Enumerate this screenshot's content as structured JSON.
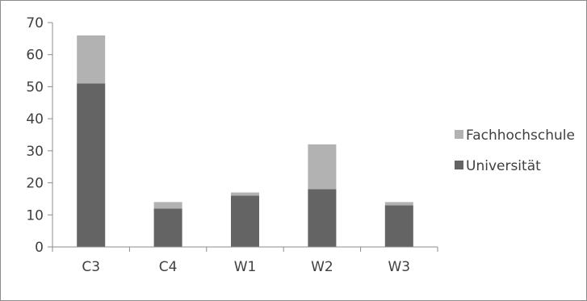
{
  "chart_data": {
    "type": "bar",
    "stacked": true,
    "categories": [
      "C3",
      "C4",
      "W1",
      "W2",
      "W3"
    ],
    "series": [
      {
        "name": "Universität",
        "values": [
          51,
          12,
          16,
          18,
          13
        ],
        "color": "#646464"
      },
      {
        "name": "Fachhochschule",
        "values": [
          15,
          2,
          1,
          14,
          1
        ],
        "color": "#b2b2b2"
      }
    ],
    "ylim": [
      0,
      70
    ],
    "yticks": [
      "0",
      "10",
      "20",
      "30",
      "40",
      "50",
      "60",
      "70"
    ],
    "grid": false,
    "legend": {
      "position": "right",
      "entries": [
        "Fachhochschule",
        "Universität"
      ]
    },
    "title": "",
    "xlabel": "",
    "ylabel": ""
  }
}
